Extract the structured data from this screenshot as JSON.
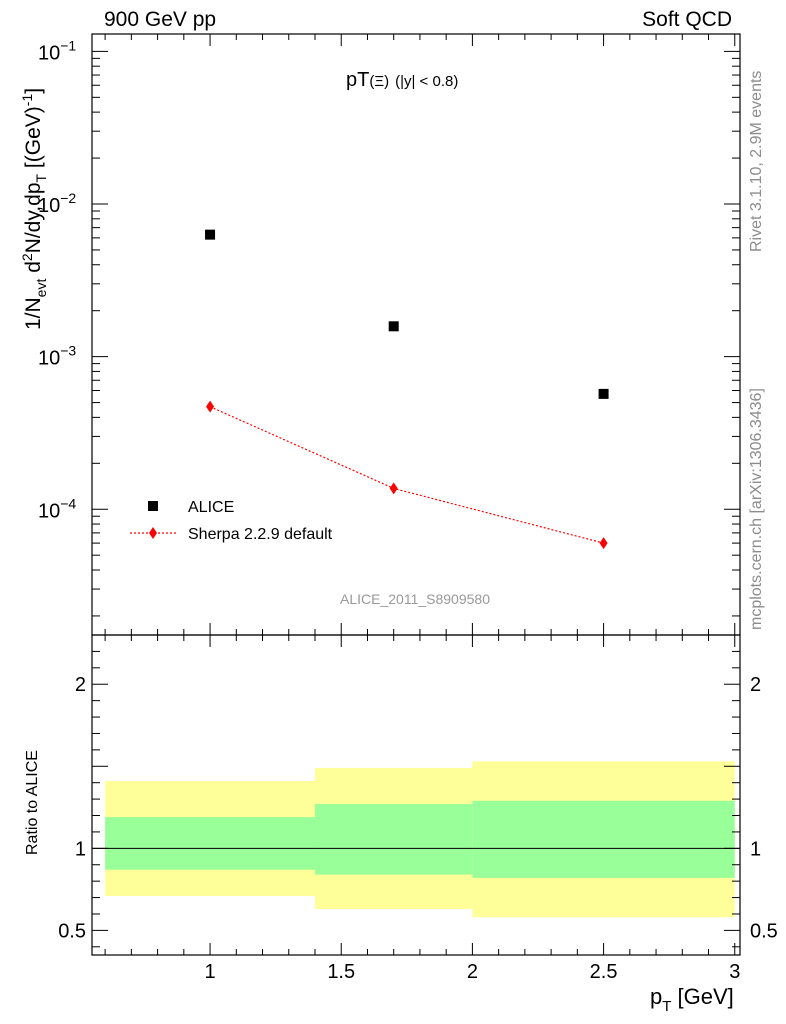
{
  "header": {
    "left": "900 GeV pp",
    "right": "Soft QCD"
  },
  "side_labels": {
    "rivet": "Rivet 3.1.10,  2.9M events",
    "mcplots": "mcplots.cern.ch [arXiv:1306.3436]"
  },
  "chart_data": [
    {
      "type": "scatter",
      "title": "pT(Ξ) (|y| < 0.8)",
      "title_main": "pT",
      "title_particle": "(Ξ)",
      "title_cut": "(|y| < 0.8)",
      "xlabel": "p_T [GeV]",
      "ylabel": "1/N_evt d²N/dy,dp_T [(GeV)⁻¹]",
      "yscale": "log",
      "xlim": [
        0.55,
        3.02
      ],
      "ylim": [
        1.5e-05,
        0.13
      ],
      "x_ticks": [
        "1",
        "1.5",
        "2",
        "2.5",
        "3"
      ],
      "y_ticks": [
        {
          "value": 0.1,
          "base": "10",
          "exp": "−1"
        },
        {
          "value": 0.01,
          "base": "10",
          "exp": "−2"
        },
        {
          "value": 0.001,
          "base": "10",
          "exp": "−3"
        },
        {
          "value": 0.0001,
          "base": "10",
          "exp": "−4"
        }
      ],
      "analysis_id": "ALICE_2011_S8909580",
      "series": [
        {
          "name": "ALICE",
          "marker": "square",
          "color": "#000000",
          "x": [
            1.0,
            1.7,
            2.5
          ],
          "values": [
            0.0063,
            0.00158,
            0.00057
          ],
          "xerr": [
            [
              0.6,
              1.4
            ],
            [
              1.4,
              2.0
            ],
            [
              2.0,
              3.0
            ]
          ]
        },
        {
          "name": "Sherpa 2.2.9 default",
          "marker": "diamond",
          "line": "dotted",
          "color": "#ff0000",
          "x": [
            1.0,
            1.7,
            2.5
          ],
          "values": [
            0.00047,
            0.000137,
            6e-05
          ]
        }
      ]
    },
    {
      "type": "ratio",
      "ylabel": "Ratio to ALICE",
      "xlim": [
        0.55,
        3.02
      ],
      "ylim": [
        0.35,
        2.3
      ],
      "y_ticks": [
        "0.5",
        "1",
        "2"
      ],
      "reference": 1,
      "bands": [
        {
          "x_range": [
            0.6,
            1.4
          ],
          "inner": [
            0.87,
            1.19
          ],
          "outer": [
            0.71,
            1.41
          ]
        },
        {
          "x_range": [
            1.4,
            2.0
          ],
          "inner": [
            0.84,
            1.27
          ],
          "outer": [
            0.63,
            1.49
          ]
        },
        {
          "x_range": [
            2.0,
            3.0
          ],
          "inner": [
            0.82,
            1.29
          ],
          "outer": [
            0.58,
            1.53
          ]
        }
      ],
      "colors": {
        "inner": "#99ff99",
        "outer": "#ffff99"
      }
    }
  ]
}
